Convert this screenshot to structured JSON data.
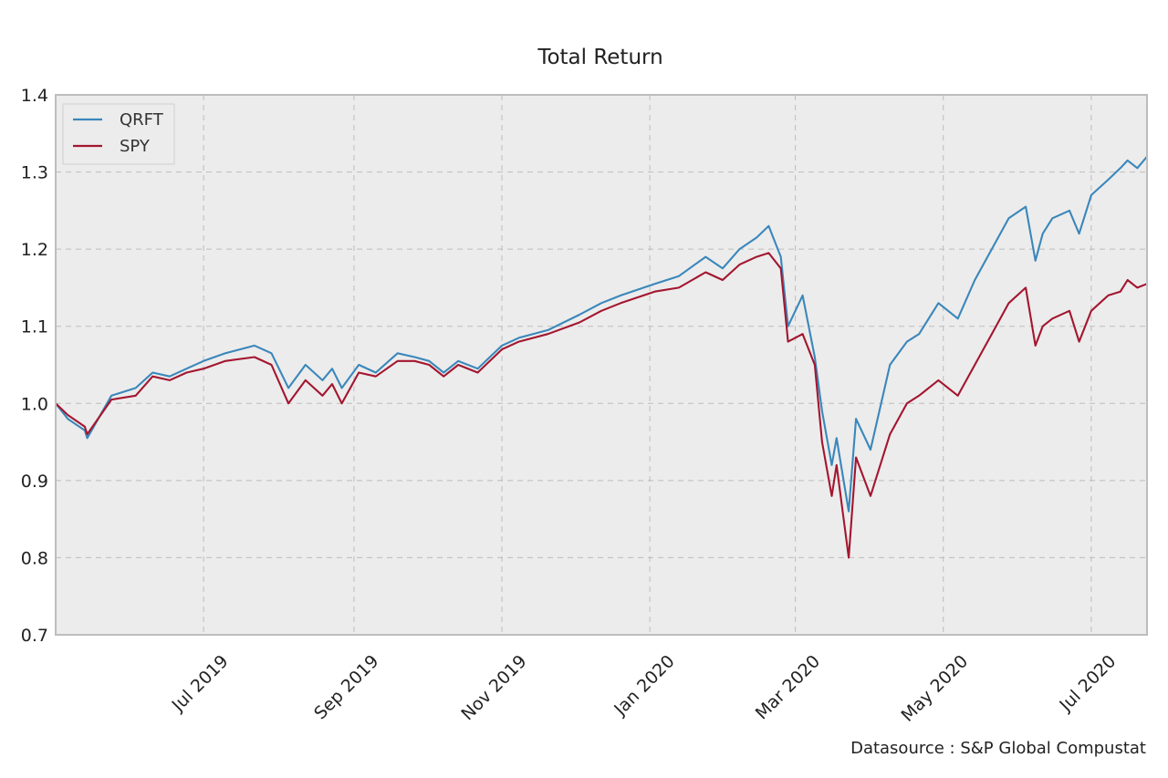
{
  "chart_data": {
    "type": "line",
    "title": "Total Return",
    "xlabel": "",
    "ylabel": "",
    "xlim": [
      "2019-05-01",
      "2020-07-24"
    ],
    "ylim": [
      0.7,
      1.4
    ],
    "grid": true,
    "legend_position": "top-left",
    "y_ticks": [
      {
        "value": 0.7,
        "label": "0.7"
      },
      {
        "value": 0.8,
        "label": "0.8"
      },
      {
        "value": 0.9,
        "label": "0.9"
      },
      {
        "value": 1.0,
        "label": "1.0"
      },
      {
        "value": 1.1,
        "label": "1.1"
      },
      {
        "value": 1.2,
        "label": "1.2"
      },
      {
        "value": 1.3,
        "label": "1.3"
      },
      {
        "value": 1.4,
        "label": "1.4"
      }
    ],
    "x_ticks": [
      {
        "date": "2019-07-01",
        "label": "Jul 2019"
      },
      {
        "date": "2019-09-01",
        "label": "Sep 2019"
      },
      {
        "date": "2019-11-01",
        "label": "Nov 2019"
      },
      {
        "date": "2020-01-01",
        "label": "Jan 2020"
      },
      {
        "date": "2020-03-01",
        "label": "Mar 2020"
      },
      {
        "date": "2020-05-01",
        "label": "May 2020"
      },
      {
        "date": "2020-07-01",
        "label": "Jul 2020"
      }
    ],
    "x": [
      "2019-05-01",
      "2019-05-06",
      "2019-05-13",
      "2019-05-14",
      "2019-05-24",
      "2019-06-03",
      "2019-06-10",
      "2019-06-17",
      "2019-06-24",
      "2019-07-01",
      "2019-07-10",
      "2019-07-22",
      "2019-07-29",
      "2019-08-05",
      "2019-08-12",
      "2019-08-19",
      "2019-08-23",
      "2019-08-27",
      "2019-09-03",
      "2019-09-10",
      "2019-09-19",
      "2019-09-26",
      "2019-10-02",
      "2019-10-08",
      "2019-10-14",
      "2019-10-22",
      "2019-11-01",
      "2019-11-08",
      "2019-11-20",
      "2019-12-03",
      "2019-12-12",
      "2019-12-20",
      "2020-01-03",
      "2020-01-13",
      "2020-01-24",
      "2020-01-31",
      "2020-02-07",
      "2020-02-14",
      "2020-02-19",
      "2020-02-24",
      "2020-02-27",
      "2020-03-04",
      "2020-03-09",
      "2020-03-12",
      "2020-03-16",
      "2020-03-18",
      "2020-03-23",
      "2020-03-26",
      "2020-04-01",
      "2020-04-09",
      "2020-04-16",
      "2020-04-21",
      "2020-04-29",
      "2020-05-07",
      "2020-05-14",
      "2020-05-21",
      "2020-05-28",
      "2020-06-04",
      "2020-06-08",
      "2020-06-11",
      "2020-06-15",
      "2020-06-22",
      "2020-06-26",
      "2020-07-01",
      "2020-07-08",
      "2020-07-13",
      "2020-07-16",
      "2020-07-20",
      "2020-07-24"
    ],
    "series": [
      {
        "name": "QRFT",
        "color": "#3a87bb",
        "values": [
          1.0,
          0.98,
          0.965,
          0.955,
          1.01,
          1.02,
          1.04,
          1.035,
          1.045,
          1.055,
          1.065,
          1.075,
          1.065,
          1.02,
          1.05,
          1.03,
          1.045,
          1.02,
          1.05,
          1.04,
          1.065,
          1.06,
          1.055,
          1.04,
          1.055,
          1.045,
          1.075,
          1.085,
          1.095,
          1.115,
          1.13,
          1.14,
          1.155,
          1.165,
          1.19,
          1.175,
          1.2,
          1.215,
          1.23,
          1.19,
          1.1,
          1.14,
          1.06,
          0.99,
          0.92,
          0.955,
          0.86,
          0.98,
          0.94,
          1.05,
          1.08,
          1.09,
          1.13,
          1.11,
          1.16,
          1.2,
          1.24,
          1.255,
          1.185,
          1.22,
          1.24,
          1.25,
          1.22,
          1.27,
          1.29,
          1.305,
          1.315,
          1.305,
          1.32
        ]
      },
      {
        "name": "SPY",
        "color": "#a3162f",
        "values": [
          1.0,
          0.985,
          0.97,
          0.96,
          1.005,
          1.01,
          1.035,
          1.03,
          1.04,
          1.045,
          1.055,
          1.06,
          1.05,
          1.0,
          1.03,
          1.01,
          1.025,
          1.0,
          1.04,
          1.035,
          1.055,
          1.055,
          1.05,
          1.035,
          1.05,
          1.04,
          1.07,
          1.08,
          1.09,
          1.105,
          1.12,
          1.13,
          1.145,
          1.15,
          1.17,
          1.16,
          1.18,
          1.19,
          1.195,
          1.175,
          1.08,
          1.09,
          1.05,
          0.95,
          0.88,
          0.92,
          0.8,
          0.93,
          0.88,
          0.96,
          1.0,
          1.01,
          1.03,
          1.01,
          1.05,
          1.09,
          1.13,
          1.15,
          1.075,
          1.1,
          1.11,
          1.12,
          1.08,
          1.12,
          1.14,
          1.145,
          1.16,
          1.15,
          1.155
        ]
      }
    ]
  },
  "source_note": "Datasource : S&P Global Compustat"
}
